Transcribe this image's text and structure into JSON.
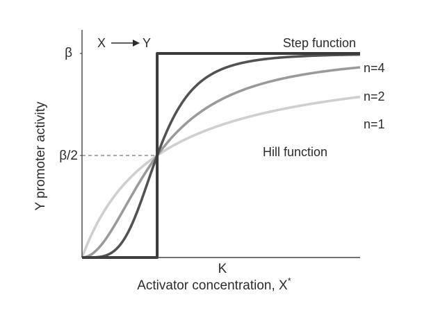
{
  "chart_data": {
    "type": "line",
    "title": "",
    "xlabel": "Activator concentration, X",
    "xlabel_superscript": "*",
    "ylabel": "Y promoter activity",
    "x_range": [
      0,
      3.7
    ],
    "ylim": [
      0,
      1
    ],
    "x_ticks": [
      {
        "value": 1,
        "label": "K"
      }
    ],
    "y_ticks": [
      {
        "value": 1,
        "label": "β"
      },
      {
        "value": 0.5,
        "label": "β/2"
      }
    ],
    "guide": {
      "type": "dashed",
      "x": 1,
      "y": 0.5
    },
    "inset_label": {
      "from": "X",
      "to": "Y"
    },
    "annotations": [
      "Hill function"
    ],
    "series": [
      {
        "name": "n=1",
        "kind": "hill",
        "n": 1,
        "color": "#cfcfcf"
      },
      {
        "name": "n=2",
        "kind": "hill",
        "n": 2,
        "color": "#9a9a9a"
      },
      {
        "name": "n=4",
        "kind": "hill",
        "n": 4,
        "color": "#525252"
      },
      {
        "name": "Step function",
        "kind": "step",
        "threshold": 1,
        "color": "#3a3a3a"
      }
    ]
  }
}
